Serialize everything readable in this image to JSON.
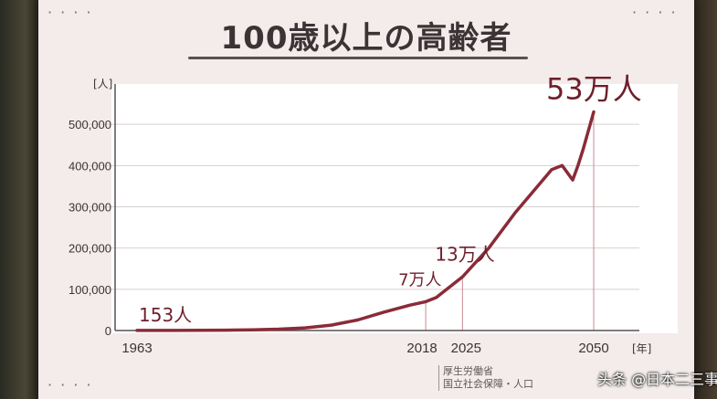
{
  "title": "100歳以上の高齢者",
  "source_lines": [
    "厚生労働省",
    "国立社会保障・人口"
  ],
  "watermark": "头条 @日本二三事",
  "colors": {
    "line": "#8a2b38",
    "board": "#f3ecea",
    "text": "#3b3436"
  },
  "chart_data": {
    "type": "line",
    "title": "100歳以上の高齢者",
    "yunit": "[人]",
    "xunit": "[年]",
    "ylim": [
      0,
      600000
    ],
    "yticks": [
      0,
      100000,
      200000,
      300000,
      400000,
      500000
    ],
    "ytick_labels": [
      "0",
      "100,000",
      "200,000",
      "300,000",
      "400,000",
      "500,000"
    ],
    "xlim": [
      1963,
      2050
    ],
    "xtick_labels": [
      "1963",
      "2018",
      "2025",
      "2050"
    ],
    "xticks": [
      1963,
      2018,
      2025,
      2050
    ],
    "grid": true,
    "series": [
      {
        "x": [
          1963,
          1970,
          1975,
          1980,
          1985,
          1990,
          1995,
          2000,
          2005,
          2010,
          2015,
          2018,
          2020,
          2025,
          2030,
          2035,
          2040,
          2042,
          2044,
          2046,
          2047,
          2048,
          2050
        ],
        "y": [
          153,
          310,
          550,
          970,
          1700,
          3300,
          6400,
          13000,
          25500,
          44500,
          61500,
          70000,
          80000,
          130000,
          200000,
          285000,
          360000,
          390000,
          400000,
          365000,
          400000,
          440000,
          530000
        ]
      }
    ],
    "annotations": [
      {
        "label": "153人",
        "x": 1963,
        "y": 153
      },
      {
        "label": "7万人",
        "x": 2018,
        "y": 70000
      },
      {
        "label": "13万人",
        "x": 2025,
        "y": 130000
      },
      {
        "label": "53万人",
        "x": 2050,
        "y": 530000
      }
    ]
  }
}
